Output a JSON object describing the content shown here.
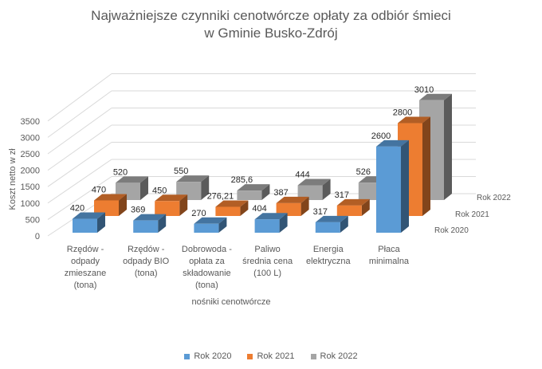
{
  "chart_data": {
    "type": "bar",
    "variant": "3d-clustered-depth",
    "title_lines": [
      "Najważniejsze czynniki cenotwórcze opłaty za odbiór śmieci",
      "w Gminie Busko-Zdrój"
    ],
    "xlabel": "nośniki cenotwórcze",
    "ylabel": "Koszt netto w zł",
    "ylim": [
      0,
      3500
    ],
    "yticks": [
      "0",
      "500",
      "1000",
      "1500",
      "2000",
      "2500",
      "3000",
      "3500"
    ],
    "categories": [
      [
        "Rzędów -",
        "odpady",
        "zmieszane",
        "(tona)"
      ],
      [
        "Rzędów -",
        "odpady BIO",
        "(tona)"
      ],
      [
        "Dobrowoda -",
        "opłata za",
        "składowanie",
        "(tona)"
      ],
      [
        "Paliwo",
        "średnia cena",
        "(100 L)"
      ],
      [
        "Energia",
        "elektryczna"
      ],
      [
        "Płaca",
        "minimalna"
      ]
    ],
    "series": [
      {
        "name": "Rok 2020",
        "color": "#5b9bd5",
        "values": [
          420,
          369,
          270,
          404,
          317,
          2600
        ],
        "labels": [
          "420",
          "369",
          "270",
          "404",
          "317",
          "2600"
        ]
      },
      {
        "name": "Rok 2021",
        "color": "#ed7d31",
        "values": [
          470,
          450,
          276.21,
          387,
          317,
          2800
        ],
        "labels": [
          "470",
          "450",
          "276,21",
          "387",
          "317",
          "2800"
        ]
      },
      {
        "name": "Rok 2022",
        "color": "#a5a5a5",
        "values": [
          520,
          550,
          285.6,
          444,
          526,
          3010
        ],
        "labels": [
          "520",
          "550",
          "285,6",
          "444",
          "526",
          "3010"
        ]
      }
    ],
    "legend": "bottom",
    "grid": true
  }
}
